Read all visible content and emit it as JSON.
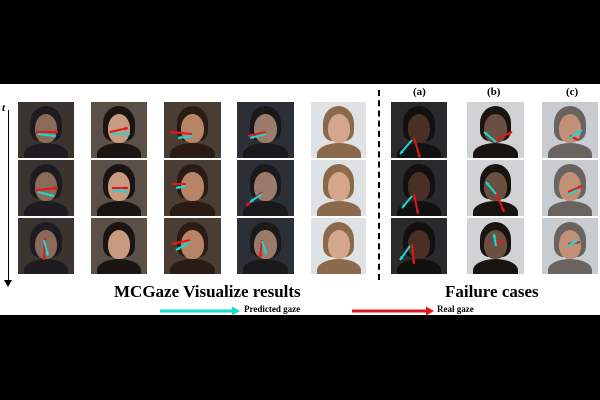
{
  "axis": {
    "time_label": "t"
  },
  "captions": {
    "main": "MCGaze Visualize results",
    "failure": "Failure cases"
  },
  "subfigures": [
    "(a)",
    "(b)",
    "(c)"
  ],
  "legend": {
    "predicted": "Predicted gaze",
    "real": "Real gaze"
  },
  "colors": {
    "predicted": "#19d9d0",
    "real": "#e0181e",
    "background": "#000000",
    "figure": "#ffffff"
  }
}
